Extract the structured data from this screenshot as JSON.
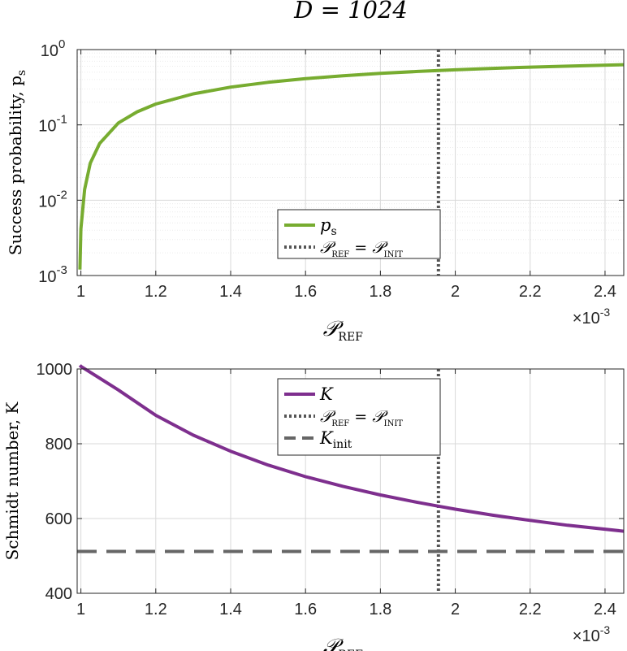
{
  "figure": {
    "title": "D = 1024"
  },
  "colors": {
    "ps": "#77ac30",
    "K": "#7e2f8e",
    "ref": "#555555",
    "kinit": "#666666",
    "axis": "#262626",
    "grid": "#d9d9d9"
  },
  "chart_data": [
    {
      "type": "line",
      "title": "",
      "xlabel": "𝒫_REF",
      "ylabel": "Success probability, p_s",
      "x_multiplier_label": "×10^-3",
      "xlim": [
        0.99,
        2.45
      ],
      "ylim": [
        0.001,
        1
      ],
      "yscale": "log",
      "x_ticks": [
        1,
        1.2,
        1.4,
        1.6,
        1.8,
        2,
        2.2,
        2.4
      ],
      "x_tick_labels": [
        "1",
        "1.2",
        "1.4",
        "1.6",
        "1.8",
        "2",
        "2.2",
        "2.4"
      ],
      "y_ticks": [
        0.001,
        0.01,
        0.1,
        1
      ],
      "y_tick_labels": [
        "10^-3",
        "10^-2",
        "10^-1",
        "10^0"
      ],
      "grid": true,
      "legend_position": "center-bottom",
      "series": [
        {
          "name": "p_s",
          "style": "solid",
          "x": [
            0.9973,
            1.0,
            1.01,
            1.025,
            1.05,
            1.1,
            1.15,
            1.2,
            1.3,
            1.4,
            1.5,
            1.6,
            1.7,
            1.8,
            1.9,
            1.95,
            2.0,
            2.1,
            2.2,
            2.3,
            2.45
          ],
          "y": [
            0.0012,
            0.00415,
            0.0139,
            0.0309,
            0.0567,
            0.106,
            0.149,
            0.189,
            0.258,
            0.317,
            0.367,
            0.411,
            0.449,
            0.483,
            0.512,
            0.526,
            0.539,
            0.563,
            0.584,
            0.603,
            0.63
          ]
        }
      ],
      "reference_lines": [
        {
          "name": "𝒫_REF = 𝒫_INIT",
          "orientation": "vertical",
          "x": 1.955,
          "style": "dotted"
        }
      ]
    },
    {
      "type": "line",
      "title": "",
      "xlabel": "𝒫_REF",
      "ylabel": "Schmidt number, K",
      "x_multiplier_label": "×10^-3",
      "xlim": [
        0.99,
        2.45
      ],
      "ylim": [
        400,
        1000
      ],
      "yscale": "linear",
      "x_ticks": [
        1,
        1.2,
        1.4,
        1.6,
        1.8,
        2,
        2.2,
        2.4
      ],
      "x_tick_labels": [
        "1",
        "1.2",
        "1.4",
        "1.6",
        "1.8",
        "2",
        "2.2",
        "2.4"
      ],
      "y_ticks": [
        400,
        600,
        800,
        1000
      ],
      "y_tick_labels": [
        "400",
        "600",
        "800",
        "1000"
      ],
      "grid": true,
      "legend_position": "top-center",
      "series": [
        {
          "name": "K",
          "style": "solid",
          "x": [
            0.9973,
            1.0,
            1.1,
            1.2,
            1.3,
            1.4,
            1.5,
            1.6,
            1.7,
            1.8,
            1.9,
            1.955,
            2.0,
            2.1,
            2.2,
            2.3,
            2.45
          ],
          "y": [
            1010,
            1007,
            944,
            876,
            823,
            780,
            743,
            712,
            686,
            663,
            643,
            633,
            625,
            609,
            595,
            582,
            566
          ]
        }
      ],
      "reference_lines": [
        {
          "name": "𝒫_REF = 𝒫_INIT",
          "orientation": "vertical",
          "x": 1.955,
          "style": "dotted"
        },
        {
          "name": "K_init",
          "orientation": "horizontal",
          "y": 512,
          "style": "dashed"
        }
      ]
    }
  ]
}
